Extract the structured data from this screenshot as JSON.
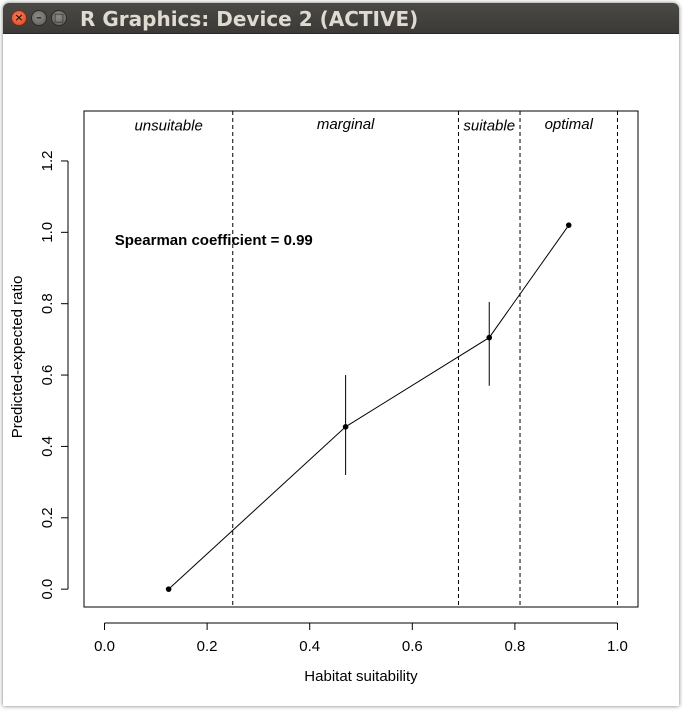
{
  "window": {
    "title": "R Graphics: Device 2 (ACTIVE)",
    "close_glyph": "×",
    "minimize_glyph": "–",
    "maximize_glyph": "□"
  },
  "chart_data": {
    "type": "line",
    "xlabel": "Habitat suitability",
    "ylabel": "Predicted-expected ratio",
    "xlim": [
      -0.04,
      1.04
    ],
    "ylim": [
      -0.05,
      1.34
    ],
    "x_ticks": [
      0.0,
      0.2,
      0.4,
      0.6,
      0.8,
      1.0
    ],
    "x_tick_labels": [
      "0.0",
      "0.2",
      "0.4",
      "0.6",
      "0.8",
      "1.0"
    ],
    "y_ticks": [
      0.0,
      0.2,
      0.4,
      0.6,
      0.8,
      1.0,
      1.2
    ],
    "y_tick_labels": [
      "0.0",
      "0.2",
      "0.4",
      "0.6",
      "0.8",
      "1.0",
      "1.2"
    ],
    "series": [
      {
        "name": "predicted-expected",
        "points": [
          {
            "x": 0.125,
            "y": 0.0
          },
          {
            "x": 0.47,
            "y": 0.455,
            "err_low": 0.32,
            "err_high": 0.6
          },
          {
            "x": 0.75,
            "y": 0.705,
            "err_low": 0.57,
            "err_high": 0.805
          },
          {
            "x": 0.905,
            "y": 1.02
          }
        ]
      }
    ],
    "thresholds": [
      0.25,
      0.69,
      0.81,
      1.0
    ],
    "class_labels": [
      {
        "text": "unsuitable",
        "x": 0.125,
        "y": 1.285
      },
      {
        "text": "marginal",
        "x": 0.47,
        "y": 1.29
      },
      {
        "text": "suitable",
        "x": 0.75,
        "y": 1.285
      },
      {
        "text": "optimal",
        "x": 0.905,
        "y": 1.29
      }
    ],
    "annotation": {
      "text": "Spearman coefficient = 0.99",
      "x": 0.02,
      "y": 0.965
    },
    "grid": false,
    "legend": "none"
  }
}
